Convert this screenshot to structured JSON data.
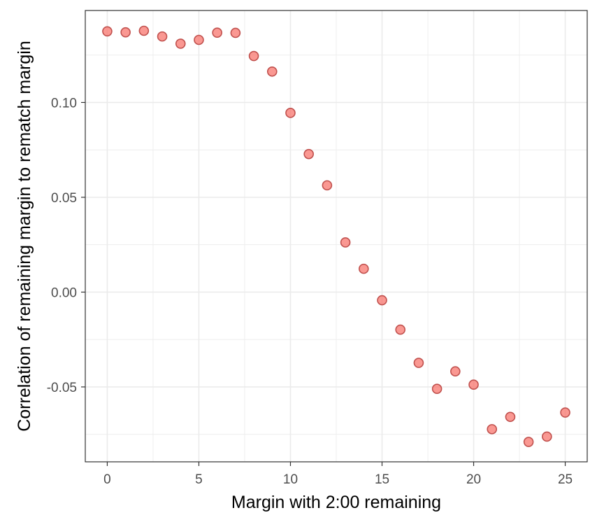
{
  "chart_data": {
    "type": "scatter",
    "xlabel": "Margin with 2:00 remaining",
    "ylabel": "Correlation of remaining margin to rematch margin",
    "x": [
      0,
      1,
      2,
      3,
      4,
      5,
      6,
      7,
      8,
      9,
      10,
      11,
      12,
      13,
      14,
      15,
      16,
      17,
      18,
      19,
      20,
      21,
      22,
      23,
      24,
      25
    ],
    "y": [
      0.1375,
      0.137,
      0.1378,
      0.1348,
      0.131,
      0.133,
      0.1368,
      0.1367,
      0.1245,
      0.1163,
      0.0945,
      0.0728,
      0.0563,
      0.0262,
      0.0123,
      -0.0043,
      -0.0198,
      -0.0373,
      -0.051,
      -0.0418,
      -0.0488,
      -0.0723,
      -0.0658,
      -0.079,
      -0.0762,
      -0.0635
    ],
    "xlim": [
      -1.2,
      26.2
    ],
    "ylim": [
      -0.0895,
      0.1485
    ],
    "x_ticks": [
      0,
      5,
      10,
      15,
      20,
      25
    ],
    "x_tick_labels": [
      "0",
      "5",
      "10",
      "15",
      "20",
      "25"
    ],
    "y_ticks": [
      -0.05,
      0.0,
      0.05,
      0.1
    ],
    "y_tick_labels": [
      "-0.05",
      "0.00",
      "0.05",
      "0.10"
    ],
    "x_minor": [
      2.5,
      7.5,
      12.5,
      17.5,
      22.5
    ],
    "y_minor": [
      -0.075,
      -0.025,
      0.025,
      0.075,
      0.125
    ],
    "grid": true,
    "colors": {
      "point_fill": "#f8766d",
      "point_stroke": "#c0504d",
      "grid": "#ebebeb",
      "panel_border": "#333333",
      "tick_label": "#4d4d4d"
    }
  }
}
